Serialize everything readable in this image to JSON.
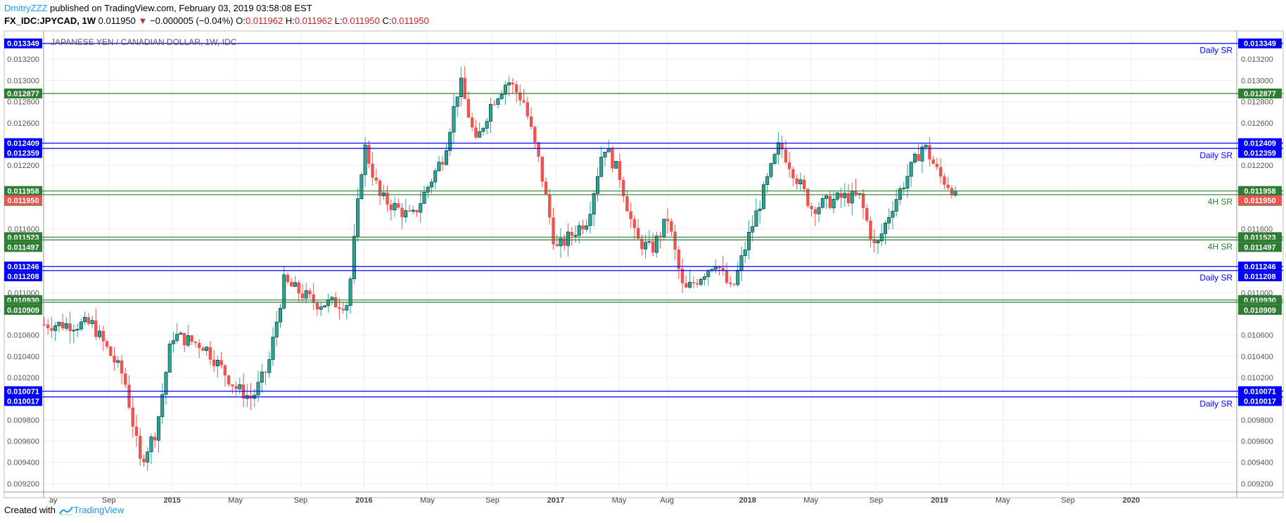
{
  "header": {
    "author": "DmitryZZZ",
    "published_text": "published on TradingView.com, February 03, 2019 03:58:08 EST",
    "symbol": "FX_IDC:JPYCAD, 1W",
    "last": "0.011950",
    "change": "−0.000005 (−0.04%)",
    "o_label": "O:",
    "o": "0.011962",
    "h_label": "H:",
    "h": "0.011962",
    "l_label": "L:",
    "l": "0.011950",
    "c_label": "C:",
    "c": "0.011950"
  },
  "footer": {
    "created_with": "Created with",
    "brand": "TradingView"
  },
  "colors": {
    "up": "#26a69a",
    "down": "#ef5350",
    "blue": "#0000ff",
    "green": "#2e7d32",
    "last": "#ef5350"
  },
  "chart_data": {
    "type": "candlestick",
    "title": "JAPANESE YEN / CANADIAN DOLLAR, 1W, IDC",
    "ylim": [
      0.00912,
      0.01344
    ],
    "y_ticks": [
      0.0092,
      0.0094,
      0.0096,
      0.0098,
      0.0102,
      0.0104,
      0.0106,
      0.011,
      0.0116,
      0.0122,
      0.0126,
      0.0128,
      0.013,
      0.0132
    ],
    "x_labels": [
      "ay",
      "Sep",
      "2015",
      "May",
      "Sep",
      "2016",
      "May",
      "Sep",
      "2017",
      "May",
      "Aug",
      "2018",
      "May",
      "Sep",
      "2019",
      "May",
      "Sep",
      "2020"
    ],
    "x_label_bold": [
      "2015",
      "2016",
      "2017",
      "2018",
      "2019",
      "2020"
    ],
    "last_price": "0.011950",
    "levels": [
      {
        "value": 0.013349,
        "label": "0.013349",
        "color": "blue",
        "text": "Daily SR"
      },
      {
        "value": 0.012877,
        "label": "0.012877",
        "color": "green",
        "text": ""
      },
      {
        "value": 0.012409,
        "label": "0.012409",
        "color": "blue",
        "text": ""
      },
      {
        "value": 0.012359,
        "label": "0.012359",
        "color": "blue",
        "text": "Daily SR"
      },
      {
        "value": 0.011958,
        "label": "0.011958",
        "color": "green",
        "text": ""
      },
      {
        "value": 0.011923,
        "label": "0.011923",
        "color": "green",
        "text": "4H SR"
      },
      {
        "value": 0.011523,
        "label": "0.011523",
        "color": "green",
        "text": ""
      },
      {
        "value": 0.011497,
        "label": "0.011497",
        "color": "green",
        "text": "4H SR"
      },
      {
        "value": 0.011246,
        "label": "0.011246",
        "color": "blue",
        "text": ""
      },
      {
        "value": 0.011208,
        "label": "0.011208",
        "color": "blue",
        "text": "Daily SR"
      },
      {
        "value": 0.01093,
        "label": "0.010930",
        "color": "green",
        "text": ""
      },
      {
        "value": 0.010909,
        "label": "0.010909",
        "color": "green",
        "text": ""
      },
      {
        "value": 0.010071,
        "label": "0.010071",
        "color": "blue",
        "text": ""
      },
      {
        "value": 0.010017,
        "label": "0.010017",
        "color": "blue",
        "text": "Daily SR"
      }
    ],
    "price_path": [
      [
        "2014-05",
        0.0107
      ],
      [
        "2014-08",
        0.0107
      ],
      [
        "2014-10",
        0.0102
      ],
      [
        "2014-11",
        0.0094
      ],
      [
        "2014-12",
        0.0097
      ],
      [
        "2015-01",
        0.0106
      ],
      [
        "2015-03",
        0.0105
      ],
      [
        "2015-05",
        0.0101
      ],
      [
        "2015-06",
        0.01
      ],
      [
        "2015-07",
        0.0103
      ],
      [
        "2015-08",
        0.0111
      ],
      [
        "2015-10",
        0.0109
      ],
      [
        "2015-12",
        0.0109
      ],
      [
        "2016-01",
        0.0124
      ],
      [
        "2016-02",
        0.0119
      ],
      [
        "2016-04",
        0.0117
      ],
      [
        "2016-06",
        0.0123
      ],
      [
        "2016-07",
        0.013
      ],
      [
        "2016-08",
        0.0124
      ],
      [
        "2016-09",
        0.0128
      ],
      [
        "2016-10",
        0.013
      ],
      [
        "2016-11",
        0.0128
      ],
      [
        "2016-12",
        0.0122
      ],
      [
        "2017-01",
        0.0114
      ],
      [
        "2017-03",
        0.0117
      ],
      [
        "2017-04",
        0.0124
      ],
      [
        "2017-05",
        0.0121
      ],
      [
        "2017-06",
        0.0115
      ],
      [
        "2017-07",
        0.0114
      ],
      [
        "2017-08",
        0.0117
      ],
      [
        "2017-09",
        0.011
      ],
      [
        "2017-11",
        0.0113
      ],
      [
        "2017-12",
        0.011
      ],
      [
        "2018-01",
        0.0115
      ],
      [
        "2018-03",
        0.0124
      ],
      [
        "2018-04",
        0.0121
      ],
      [
        "2018-05",
        0.0118
      ],
      [
        "2018-07",
        0.0119
      ],
      [
        "2018-08",
        0.0119
      ],
      [
        "2018-09",
        0.0114
      ],
      [
        "2018-10",
        0.0118
      ],
      [
        "2018-11",
        0.0121
      ],
      [
        "2018-12",
        0.0124
      ],
      [
        "2019-01",
        0.0121
      ],
      [
        "2019-02",
        0.01195
      ]
    ]
  }
}
